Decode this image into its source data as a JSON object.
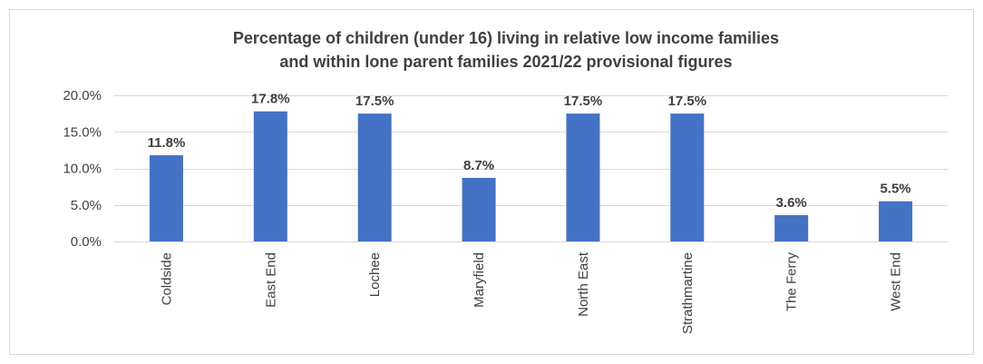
{
  "chart_data": {
    "type": "bar",
    "title_lines": [
      "Percentage of children (under 16) living in relative low income families",
      "and within lone parent families 2021/22 provisional figures"
    ],
    "categories": [
      "Coldside",
      "East End",
      "Lochee",
      "Maryfield",
      "North East",
      "Strathmartine",
      "The Ferry",
      "West End"
    ],
    "values": [
      11.8,
      17.8,
      17.5,
      8.7,
      17.5,
      17.5,
      3.6,
      5.5
    ],
    "data_labels": [
      "11.8%",
      "17.8%",
      "17.5%",
      "8.7%",
      "17.5%",
      "17.5%",
      "3.6%",
      "5.5%"
    ],
    "y_ticks": [
      0,
      5,
      10,
      15,
      20
    ],
    "y_tick_labels": [
      "0.0%",
      "5.0%",
      "10.0%",
      "15.0%",
      "20.0%"
    ],
    "ylim": [
      0,
      20
    ],
    "xlabel": "",
    "ylabel": "",
    "grid": true,
    "legend": "none",
    "colors": {
      "bar": "#4472c4",
      "grid": "#d9d9d9",
      "text": "#404040"
    }
  }
}
